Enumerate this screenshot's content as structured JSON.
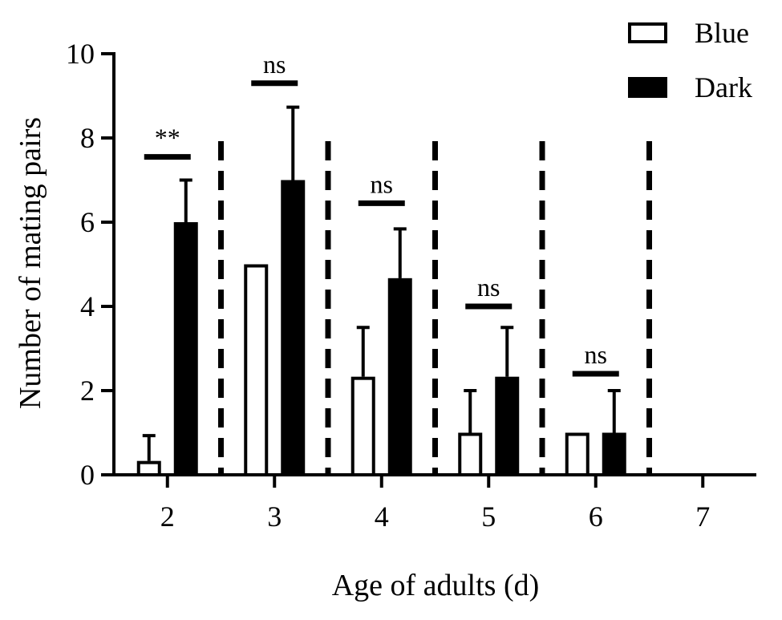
{
  "chart_data": {
    "type": "bar",
    "title": "",
    "xlabel": "Age of adults (d)",
    "ylabel": "Number of mating pairs",
    "ylim": [
      0,
      10
    ],
    "yticks": [
      "0",
      "2",
      "4",
      "6",
      "8",
      "10"
    ],
    "categories": [
      "2",
      "3",
      "4",
      "5",
      "6",
      "7"
    ],
    "legend_position": "top-right",
    "series": [
      {
        "name": "Blue",
        "fill": "#ffffff",
        "stroke": "#000000",
        "values": [
          0.33,
          5.0,
          2.33,
          1.0,
          1.0,
          0
        ],
        "errors": [
          0.6,
          0,
          1.17,
          1.0,
          0,
          0
        ]
      },
      {
        "name": "Dark",
        "fill": "#000000",
        "stroke": "#000000",
        "values": [
          6.0,
          7.0,
          4.67,
          2.33,
          1.0,
          0
        ],
        "errors": [
          1.0,
          1.73,
          1.17,
          1.17,
          1.0,
          0
        ]
      }
    ],
    "significance": [
      {
        "category": "2",
        "label": "**",
        "level": 7.55
      },
      {
        "category": "3",
        "label": "ns",
        "level": 9.3
      },
      {
        "category": "4",
        "label": "ns",
        "level": 6.45
      },
      {
        "category": "5",
        "label": "ns",
        "level": 4.0
      },
      {
        "category": "6",
        "label": "ns",
        "level": 2.4
      }
    ],
    "separators_between_groups": true,
    "grid": false
  }
}
